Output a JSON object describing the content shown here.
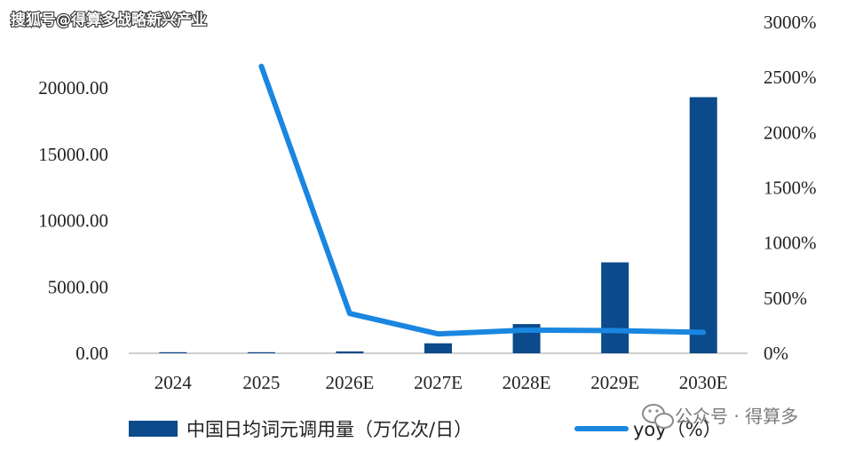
{
  "watermark_top": "搜狐号@得算多战略新兴产业",
  "watermark_bottom": "公众号 · 得算多",
  "colors": {
    "bar": "#0B4A8B",
    "line": "#1A86E0",
    "axis": "#bfbfbf",
    "text": "#222222"
  },
  "chart_data": {
    "type": "bar",
    "categories": [
      "2024",
      "2025",
      "2026E",
      "2027E",
      "2028E",
      "2029E",
      "2030E"
    ],
    "series": [
      {
        "name": "中国日均词元调用量（万亿次/日）",
        "type": "bar",
        "axis": "left",
        "values": [
          5,
          30,
          140,
          750,
          2200,
          6850,
          19300
        ]
      },
      {
        "name": "yoy（%）",
        "type": "line",
        "axis": "right",
        "values": [
          null,
          2600,
          360,
          175,
          210,
          205,
          190
        ]
      }
    ],
    "y_left": {
      "ticks": [
        "0.00",
        "5000.00",
        "10000.00",
        "15000.00",
        "20000.00"
      ],
      "ylim": [
        0,
        22000
      ]
    },
    "y_right": {
      "ticks": [
        "0%",
        "500%",
        "1000%",
        "1500%",
        "2000%",
        "2500%",
        "3000%"
      ],
      "ylim": [
        0,
        3000
      ]
    },
    "legend": [
      "中国日均词元调用量（万亿次/日）",
      "yoy（%）"
    ],
    "legend_position": "bottom",
    "grid": false
  }
}
